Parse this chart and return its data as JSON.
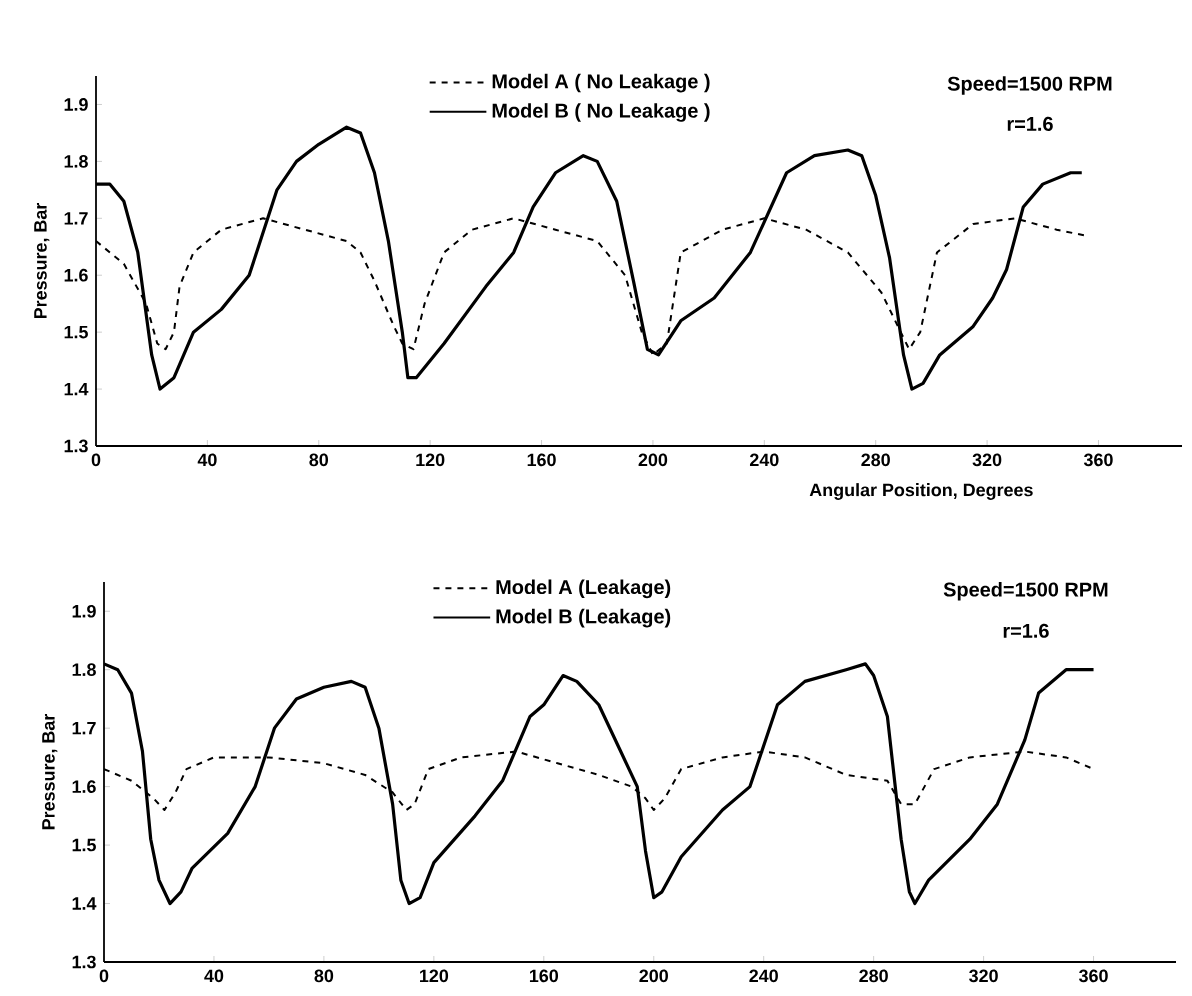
{
  "chart_data": [
    {
      "type": "line",
      "xlabel": "Angular Position, Degrees",
      "ylabel": "Pressure, Bar",
      "legend": "top",
      "xlim": [
        0,
        390
      ],
      "ylim": [
        1.3,
        1.95
      ],
      "xticks": [
        0,
        40,
        80,
        120,
        160,
        200,
        240,
        280,
        320,
        360
      ],
      "yticks": [
        1.3,
        1.4,
        1.5,
        1.6,
        1.7,
        1.8,
        1.9
      ],
      "annotations": [
        "Speed=1500 RPM",
        "r=1.6"
      ],
      "series": [
        {
          "name": "Model A ( No Leakage )",
          "color": "#000000",
          "line_style": "dashed",
          "x": [
            0,
            10,
            18,
            22,
            25,
            28,
            30,
            35,
            45,
            60,
            75,
            90,
            95,
            100,
            107,
            110,
            114,
            118,
            125,
            135,
            150,
            165,
            180,
            190,
            196,
            200,
            205,
            210,
            225,
            240,
            255,
            270,
            282,
            288,
            292,
            296,
            302,
            315,
            330,
            345,
            355
          ],
          "values": [
            1.66,
            1.62,
            1.55,
            1.48,
            1.47,
            1.5,
            1.58,
            1.64,
            1.68,
            1.7,
            1.68,
            1.66,
            1.64,
            1.59,
            1.51,
            1.48,
            1.47,
            1.55,
            1.64,
            1.68,
            1.7,
            1.68,
            1.66,
            1.6,
            1.5,
            1.46,
            1.48,
            1.64,
            1.68,
            1.7,
            1.68,
            1.64,
            1.57,
            1.51,
            1.47,
            1.5,
            1.64,
            1.69,
            1.7,
            1.68,
            1.67
          ]
        },
        {
          "name": "Model B ( No Leakage )",
          "color": "#000000",
          "line_style": "solid",
          "x": [
            0,
            5,
            10,
            15,
            20,
            23,
            28,
            35,
            45,
            55,
            65,
            72,
            80,
            90,
            95,
            100,
            105,
            110,
            112,
            115,
            125,
            140,
            150,
            157,
            165,
            175,
            180,
            187,
            193,
            198,
            202,
            210,
            222,
            235,
            248,
            258,
            270,
            275,
            280,
            285,
            290,
            293,
            297,
            303,
            315,
            322,
            327,
            333,
            340,
            350,
            354
          ],
          "values": [
            1.76,
            1.76,
            1.73,
            1.64,
            1.46,
            1.4,
            1.42,
            1.5,
            1.54,
            1.6,
            1.75,
            1.8,
            1.83,
            1.86,
            1.85,
            1.78,
            1.66,
            1.5,
            1.42,
            1.42,
            1.48,
            1.58,
            1.64,
            1.72,
            1.78,
            1.81,
            1.8,
            1.73,
            1.59,
            1.47,
            1.46,
            1.52,
            1.56,
            1.64,
            1.78,
            1.81,
            1.82,
            1.81,
            1.74,
            1.63,
            1.46,
            1.4,
            1.41,
            1.46,
            1.51,
            1.56,
            1.61,
            1.72,
            1.76,
            1.78,
            1.78
          ]
        }
      ]
    },
    {
      "type": "line",
      "ylabel": "Pressure, Bar",
      "legend": "top",
      "xlim": [
        0,
        390
      ],
      "ylim": [
        1.3,
        1.95
      ],
      "xticks": [
        0,
        40,
        80,
        120,
        160,
        200,
        240,
        280,
        320,
        360
      ],
      "yticks": [
        1.3,
        1.4,
        1.5,
        1.6,
        1.7,
        1.8,
        1.9
      ],
      "annotations": [
        "Speed=1500 RPM",
        "r=1.6"
      ],
      "series": [
        {
          "name": "Model A (Leakage)",
          "color": "#000000",
          "line_style": "dashed",
          "x": [
            0,
            10,
            18,
            22,
            26,
            30,
            40,
            60,
            80,
            95,
            105,
            110,
            113,
            118,
            130,
            150,
            165,
            180,
            192,
            197,
            200,
            204,
            210,
            225,
            240,
            255,
            270,
            285,
            290,
            295,
            302,
            315,
            335,
            350,
            360
          ],
          "values": [
            1.63,
            1.61,
            1.58,
            1.56,
            1.59,
            1.63,
            1.65,
            1.65,
            1.64,
            1.62,
            1.59,
            1.56,
            1.57,
            1.63,
            1.65,
            1.66,
            1.64,
            1.62,
            1.6,
            1.58,
            1.56,
            1.58,
            1.63,
            1.65,
            1.66,
            1.65,
            1.62,
            1.61,
            1.57,
            1.57,
            1.63,
            1.65,
            1.66,
            1.65,
            1.63
          ]
        },
        {
          "name": "Model B (Leakage)",
          "color": "#000000",
          "line_style": "solid",
          "x": [
            0,
            5,
            10,
            14,
            17,
            20,
            24,
            28,
            32,
            45,
            55,
            62,
            70,
            80,
            90,
            95,
            100,
            105,
            108,
            111,
            115,
            120,
            135,
            145,
            155,
            160,
            167,
            172,
            180,
            188,
            194,
            197,
            200,
            203,
            210,
            225,
            235,
            245,
            255,
            270,
            277,
            280,
            285,
            290,
            293,
            295,
            300,
            315,
            325,
            335,
            340,
            350,
            360
          ],
          "values": [
            1.81,
            1.8,
            1.76,
            1.66,
            1.51,
            1.44,
            1.4,
            1.42,
            1.46,
            1.52,
            1.6,
            1.7,
            1.75,
            1.77,
            1.78,
            1.77,
            1.7,
            1.57,
            1.44,
            1.4,
            1.41,
            1.47,
            1.55,
            1.61,
            1.72,
            1.74,
            1.79,
            1.78,
            1.74,
            1.66,
            1.6,
            1.49,
            1.41,
            1.42,
            1.48,
            1.56,
            1.6,
            1.74,
            1.78,
            1.8,
            1.81,
            1.79,
            1.72,
            1.51,
            1.42,
            1.4,
            1.44,
            1.51,
            1.57,
            1.68,
            1.76,
            1.8,
            1.8
          ]
        }
      ]
    }
  ]
}
